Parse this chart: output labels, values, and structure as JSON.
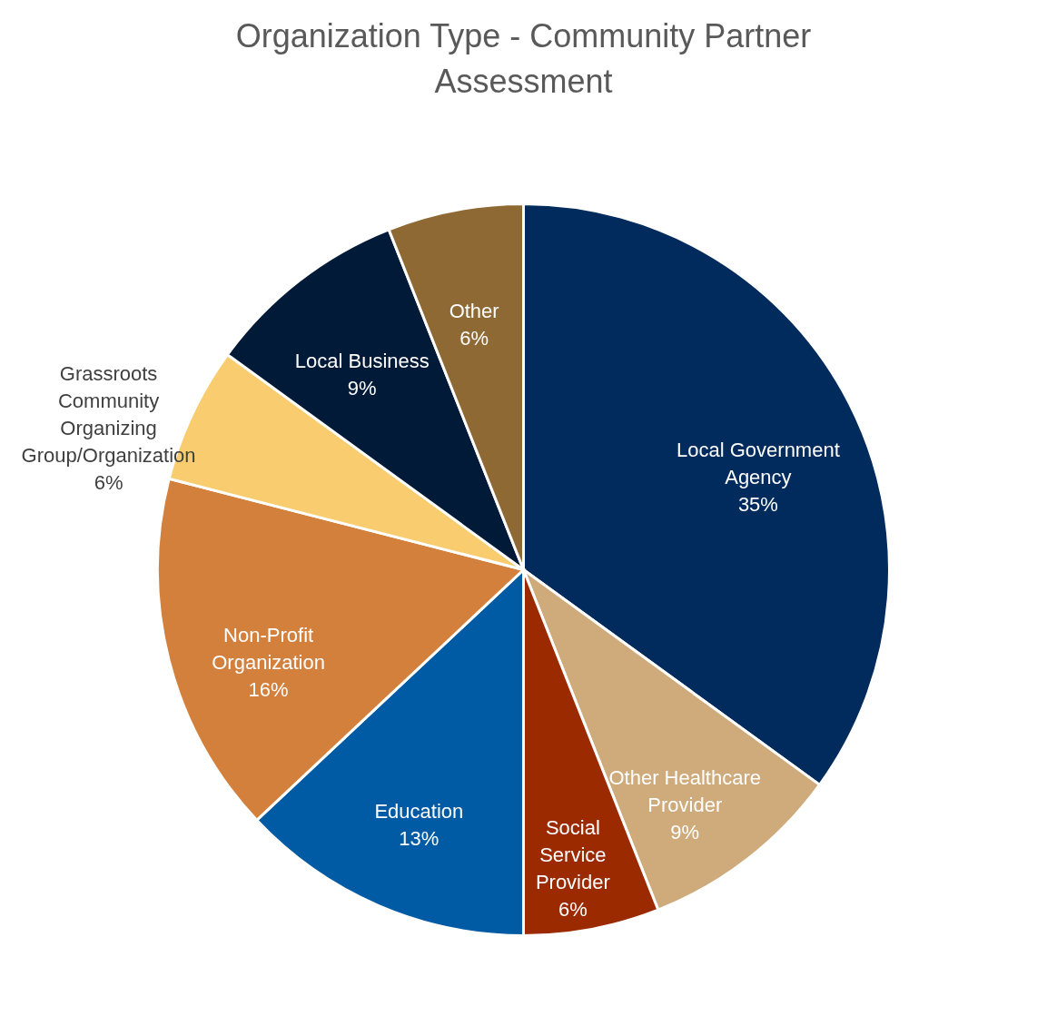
{
  "chart_data": {
    "type": "pie",
    "title": "Organization Type - Community Partner Assessment",
    "categories": [
      "Local Government Agency",
      "Other Healthcare Provider",
      "Social Service Provider",
      "Education",
      "Non-Profit Organization",
      "Grassroots Community Organizing Group/Organization",
      "Local Business",
      "Other"
    ],
    "values": [
      35,
      9,
      6,
      13,
      16,
      6,
      9,
      6
    ],
    "value_labels": [
      "35%",
      "9%",
      "6%",
      "13%",
      "16%",
      "6%",
      "9%",
      "6%"
    ],
    "colors": [
      "#002b5c",
      "#cfaa7a",
      "#9c2a00",
      "#005ba4",
      "#d3803d",
      "#f9cd6f",
      "#011a38",
      "#8f6934"
    ],
    "legend": false
  }
}
